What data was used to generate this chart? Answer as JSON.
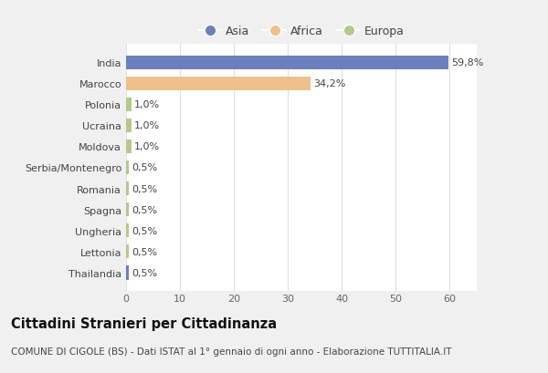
{
  "categories": [
    "India",
    "Marocco",
    "Polonia",
    "Ucraina",
    "Moldova",
    "Serbia/Montenegro",
    "Romania",
    "Spagna",
    "Ungheria",
    "Lettonia",
    "Thailandia"
  ],
  "values": [
    59.8,
    34.2,
    1.0,
    1.0,
    1.0,
    0.5,
    0.5,
    0.5,
    0.5,
    0.5,
    0.5
  ],
  "labels": [
    "59,8%",
    "34,2%",
    "1,0%",
    "1,0%",
    "1,0%",
    "0,5%",
    "0,5%",
    "0,5%",
    "0,5%",
    "0,5%",
    "0,5%"
  ],
  "colors": [
    "#6c80bf",
    "#f0c08a",
    "#b5c98a",
    "#b5c98a",
    "#b5c98a",
    "#b5c98a",
    "#b5c98a",
    "#b5c98a",
    "#b5c98a",
    "#b5c98a",
    "#6c80bf"
  ],
  "legend_labels": [
    "Asia",
    "Africa",
    "Europa"
  ],
  "legend_colors": [
    "#6c80bf",
    "#f0c08a",
    "#b5c98a"
  ],
  "xlim": [
    0,
    65
  ],
  "xticks": [
    0,
    10,
    20,
    30,
    40,
    50,
    60
  ],
  "title": "Cittadini Stranieri per Cittadinanza",
  "subtitle": "COMUNE DI CIGOLE (BS) - Dati ISTAT al 1° gennaio di ogni anno - Elaborazione TUTTITALIA.IT",
  "bg_color": "#f0f0f0",
  "plot_bg_color": "#ffffff",
  "grid_color": "#e0e0e0",
  "title_fontsize": 10.5,
  "subtitle_fontsize": 7.5,
  "label_fontsize": 8,
  "tick_fontsize": 8,
  "legend_fontsize": 9
}
